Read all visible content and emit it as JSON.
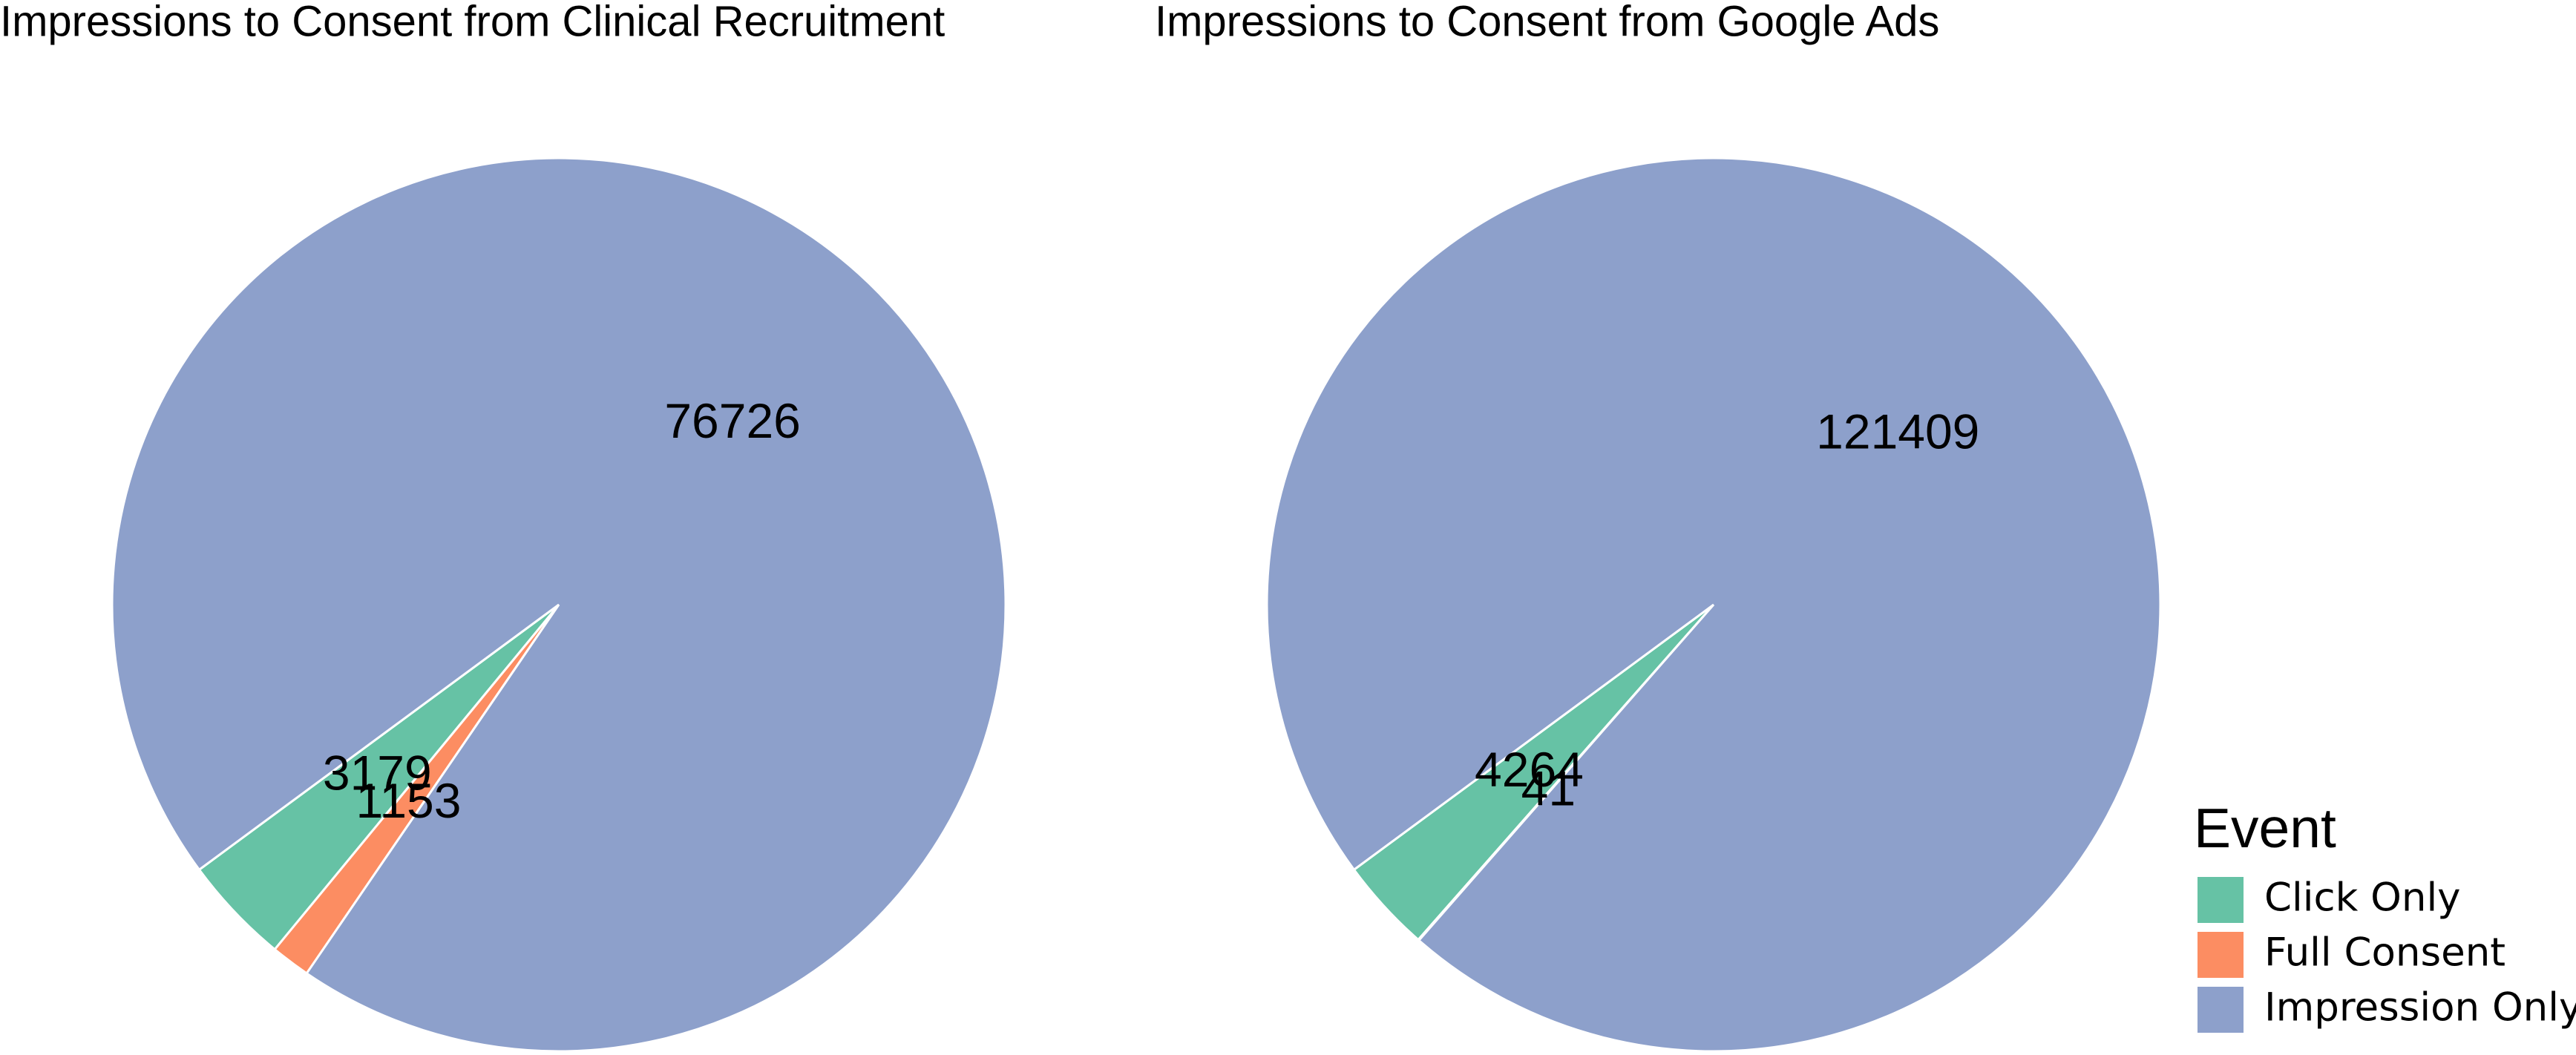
{
  "chart_data": [
    {
      "type": "pie",
      "title": "Impressions to Consent from Clinical Recruitment",
      "categories": [
        "Click Only",
        "Full Consent",
        "Impression Only"
      ],
      "values": [
        3179,
        1153,
        76726
      ],
      "colors": [
        "#66c2a5",
        "#fc8d62",
        "#8da0cb"
      ]
    },
    {
      "type": "pie",
      "title": "Impressions to Consent from Google Ads",
      "categories": [
        "Click Only",
        "Full Consent",
        "Impression Only"
      ],
      "values": [
        4264,
        41,
        121409
      ],
      "colors": [
        "#66c2a5",
        "#fc8d62",
        "#8da0cb"
      ],
      "legend_title": "Event",
      "legend": "right-bottom"
    }
  ]
}
